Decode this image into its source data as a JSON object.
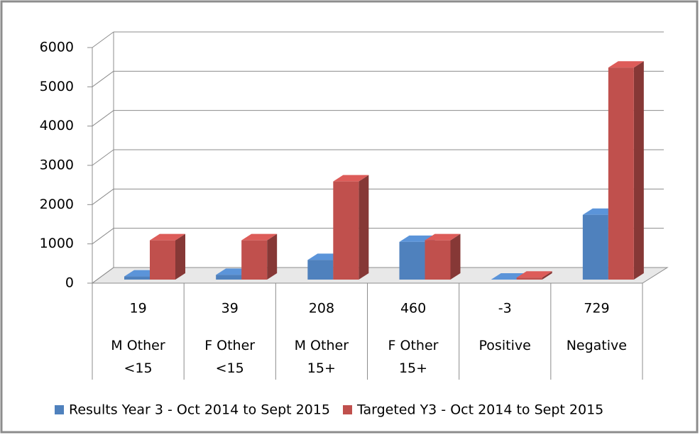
{
  "chart_data": {
    "type": "bar3d",
    "categories": [
      "M Other\n<15",
      "F Other\n<15",
      "M Other\n15+",
      "F Other\n15+",
      "Positive",
      "Negative"
    ],
    "data_table": [
      19,
      39,
      208,
      460,
      -3,
      729
    ],
    "series": [
      {
        "name": "Results Year 3 - Oct 2014 to Sept 2015",
        "color": "#4f81bd",
        "values": [
          80,
          120,
          500,
          960,
          0,
          1650
        ]
      },
      {
        "name": "Targeted Y3 - Oct 2014 to Sept 2015",
        "color": "#c0504d",
        "values": [
          1000,
          1000,
          2500,
          1000,
          50,
          5400
        ]
      }
    ],
    "ylim": [
      0,
      6000
    ],
    "yticks": [
      0,
      1000,
      2000,
      3000,
      4000,
      5000,
      6000
    ],
    "grid": true,
    "legend": "bottom"
  }
}
